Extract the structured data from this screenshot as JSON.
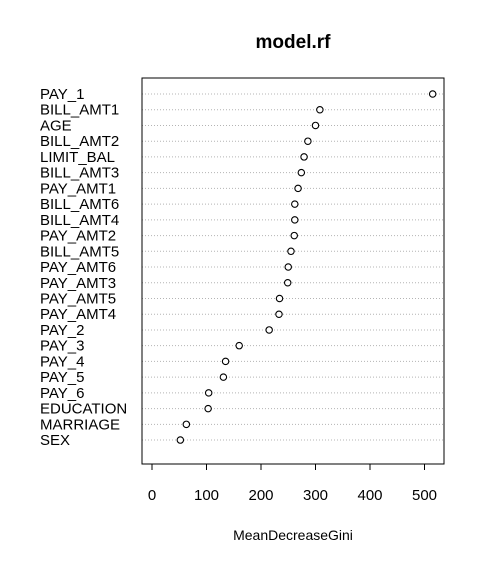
{
  "chart_data": {
    "type": "scatter",
    "title": "model.rf",
    "xlabel": "MeanDecreaseGini",
    "ylabel": "",
    "xlim": [
      -10,
      540
    ],
    "xticks": [
      0,
      100,
      200,
      300,
      400,
      500
    ],
    "grid": "horizontal-dotted",
    "categories": [
      "PAY_1",
      "BILL_AMT1",
      "AGE",
      "BILL_AMT2",
      "LIMIT_BAL",
      "BILL_AMT3",
      "PAY_AMT1",
      "BILL_AMT6",
      "BILL_AMT4",
      "PAY_AMT2",
      "BILL_AMT5",
      "PAY_AMT6",
      "PAY_AMT3",
      "PAY_AMT5",
      "PAY_AMT4",
      "PAY_2",
      "PAY_3",
      "PAY_4",
      "PAY_5",
      "PAY_6",
      "EDUCATION",
      "MARRIAGE",
      "SEX"
    ],
    "values": [
      515,
      308,
      300,
      286,
      279,
      274,
      268,
      262,
      262,
      261,
      255,
      250,
      249,
      234,
      233,
      215,
      160,
      135,
      131,
      104,
      103,
      63,
      52
    ]
  }
}
